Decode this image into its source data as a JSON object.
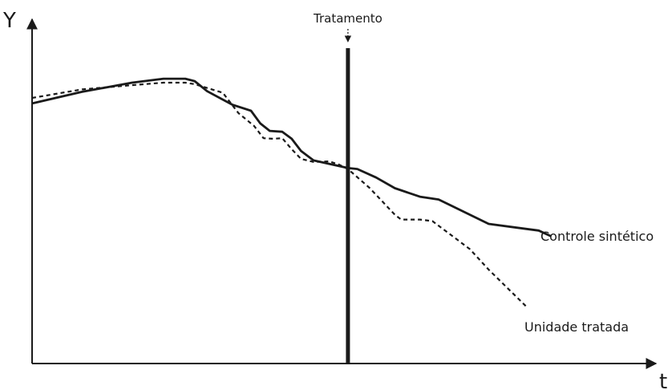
{
  "chart_data": {
    "type": "line",
    "y_axis_label": "Y",
    "x_axis_label": "t",
    "xlim": [
      0,
      100
    ],
    "ylim": [
      0,
      100
    ],
    "treatment": {
      "label": "Tratamento",
      "x": 50.5
    },
    "series": [
      {
        "name": "Controle sintético",
        "style": "solid",
        "color": "#1a1a1a",
        "x": [
          0,
          8,
          16,
          21,
          24.5,
          26,
          28,
          32,
          35,
          36.5,
          38,
          40,
          41.5,
          43,
          45,
          50.5,
          52,
          55,
          58,
          62,
          65,
          73,
          81,
          83
        ],
        "y": [
          85.3,
          89.1,
          92.1,
          93.4,
          93.4,
          92.6,
          89.3,
          84.9,
          82.9,
          78.7,
          76.3,
          76.0,
          73.7,
          69.7,
          66.6,
          64.1,
          63.8,
          61.0,
          57.5,
          54.7,
          53.8,
          45.8,
          43.6,
          41.7
        ]
      },
      {
        "name": "Unidade tratada",
        "style": "dashed",
        "color": "#1a1a1a",
        "x": [
          0,
          8,
          16,
          21,
          24.5,
          26,
          30.5,
          33,
          35.5,
          37,
          38.5,
          40,
          41.5,
          43,
          45,
          47.5,
          49,
          50.5,
          54,
          58,
          59,
          62,
          64,
          70,
          73,
          79
        ],
        "y": [
          87.1,
          89.9,
          91.3,
          92.1,
          92.1,
          91.6,
          88.8,
          82.1,
          77.9,
          73.9,
          73.7,
          73.9,
          70.3,
          67.1,
          66.1,
          66.3,
          65.3,
          63.8,
          57.5,
          48.8,
          47.2,
          47.2,
          46.7,
          37.5,
          30.8,
          18.7
        ]
      }
    ]
  }
}
